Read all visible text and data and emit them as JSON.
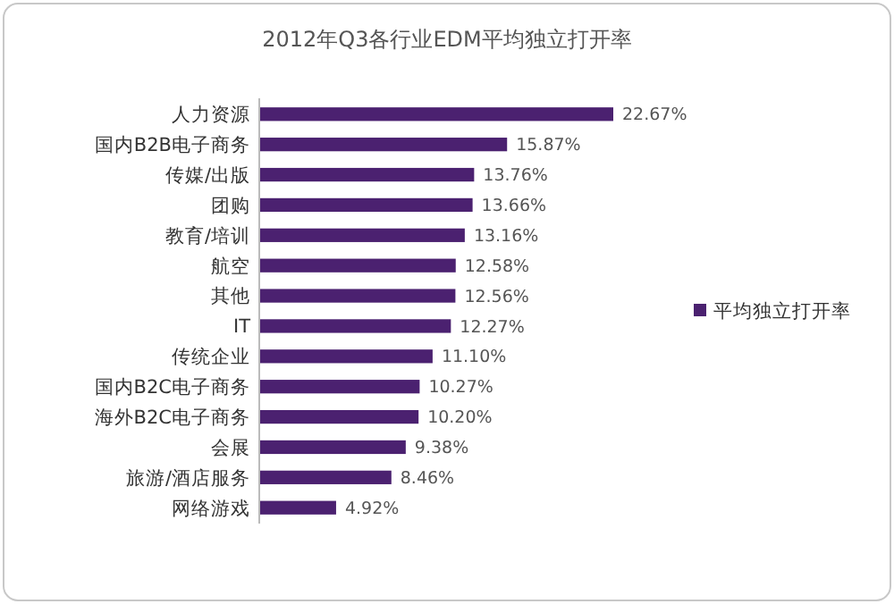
{
  "chart_data": {
    "type": "bar",
    "orientation": "horizontal",
    "title": "2012年Q3各行业EDM平均独立打开率",
    "categories": [
      "人力资源",
      "国内B2B电子商务",
      "传媒/出版",
      "团购",
      "教育/培训",
      "航空",
      "其他",
      "IT",
      "传统企业",
      "国内B2C电子商务",
      "海外B2C电子商务",
      "会展",
      "旅游/酒店服务",
      "网络游戏"
    ],
    "series": [
      {
        "name": "平均独立打开率",
        "color": "#4b2170",
        "values": [
          22.67,
          15.87,
          13.76,
          13.66,
          13.16,
          12.58,
          12.56,
          12.27,
          11.1,
          10.27,
          10.2,
          9.38,
          8.46,
          4.92
        ],
        "value_labels": [
          "22.67%",
          "15.87%",
          "13.76%",
          "13.66%",
          "13.16%",
          "12.58%",
          "12.56%",
          "12.27%",
          "11.10%",
          "10.27%",
          "10.20%",
          "9.38%",
          "8.46%",
          "4.92%"
        ]
      }
    ],
    "legend": "right"
  }
}
